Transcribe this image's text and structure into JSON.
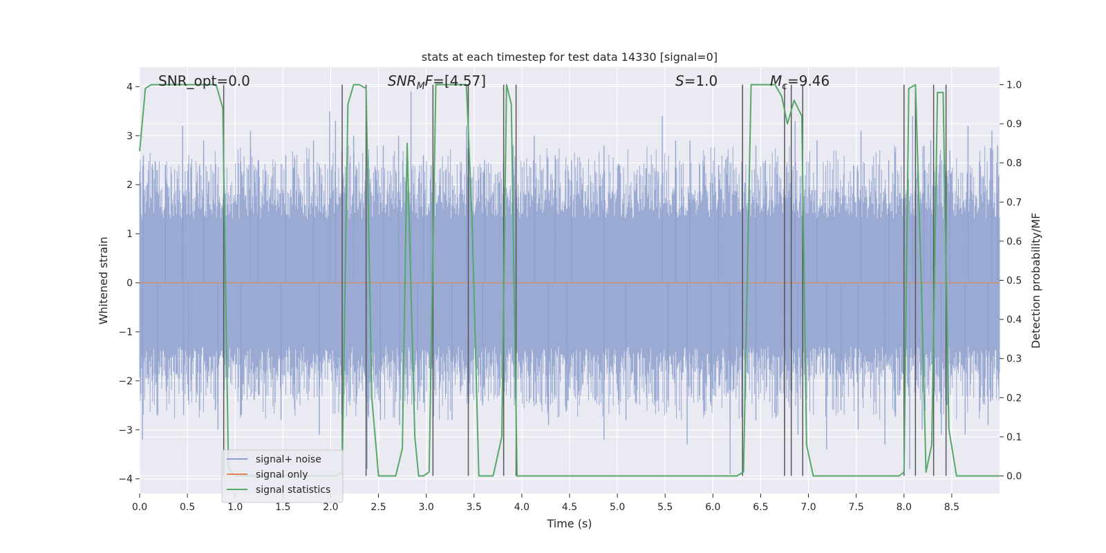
{
  "chart_data": {
    "type": "line",
    "title": "stats at each timestep for test data 14330 [signal=0]",
    "xlabel": "Time (s)",
    "ylabel": "Whitened strain",
    "y2label": "Detection probability/MF",
    "xlim": [
      0.0,
      9.0
    ],
    "ylim": [
      -4.3,
      4.4
    ],
    "y2lim": [
      -0.045,
      1.045
    ],
    "xticks": [
      0.0,
      0.5,
      1.0,
      1.5,
      2.0,
      2.5,
      3.0,
      3.5,
      4.0,
      4.5,
      5.0,
      5.5,
      6.0,
      6.5,
      7.0,
      7.5,
      8.0,
      8.5
    ],
    "xtick_labels": [
      "0.0",
      "0.5",
      "1.0",
      "1.5",
      "2.0",
      "2.5",
      "3.0",
      "3.5",
      "4.0",
      "4.5",
      "5.0",
      "5.5",
      "6.0",
      "6.5",
      "7.0",
      "7.5",
      "8.0",
      "8.5"
    ],
    "yticks": [
      -4,
      -3,
      -2,
      -1,
      0,
      1,
      2,
      3,
      4
    ],
    "ytick_labels": [
      "−4",
      "−3",
      "−2",
      "−1",
      "0",
      "1",
      "2",
      "3",
      "4"
    ],
    "y2ticks": [
      0.0,
      0.1,
      0.2,
      0.3,
      0.4,
      0.5,
      0.6,
      0.7,
      0.8,
      0.9,
      1.0
    ],
    "y2tick_labels": [
      "0.0",
      "0.1",
      "0.2",
      "0.3",
      "0.4",
      "0.5",
      "0.6",
      "0.7",
      "0.8",
      "0.9",
      "1.0"
    ],
    "grid": true,
    "legend_position": "bottom-left",
    "annotations": [
      "SNR_opt=0.0",
      "[4.57]",
      "=1.0",
      "=9.46"
    ],
    "annotation_parts": {
      "snr_mf_base": "SNR",
      "snr_mf_sub": "M",
      "snr_mf_tail": "F=",
      "s_symbol": "S",
      "mc_base": "M",
      "mc_sub": "c"
    },
    "series": [
      {
        "name": "signal+ noise",
        "color": "#8c9fcc",
        "description_values": "whitened strain noise, roughly within ±2.5 with spikes to ±3.9",
        "spikes_pos": [
          [
            0.04,
            2.6
          ],
          [
            0.27,
            2.4
          ],
          [
            0.45,
            3.2
          ],
          [
            0.67,
            2.9
          ],
          [
            1.16,
            3.1
          ],
          [
            1.24,
            2.5
          ],
          [
            1.53,
            2.6
          ],
          [
            1.82,
            2.9
          ],
          [
            1.99,
            3.5
          ],
          [
            2.05,
            3.3
          ],
          [
            2.24,
            3.0
          ],
          [
            2.55,
            2.8
          ],
          [
            2.71,
            3.0
          ],
          [
            2.84,
            3.9
          ],
          [
            2.97,
            2.6
          ],
          [
            3.05,
            2.4
          ],
          [
            3.42,
            3.2
          ],
          [
            3.61,
            2.5
          ],
          [
            3.91,
            2.8
          ],
          [
            4.13,
            3.0
          ],
          [
            4.35,
            2.6
          ],
          [
            4.52,
            2.5
          ],
          [
            4.86,
            2.8
          ],
          [
            5.47,
            3.4
          ],
          [
            5.61,
            2.9
          ],
          [
            5.76,
            2.9
          ],
          [
            6.06,
            2.4
          ],
          [
            6.45,
            2.8
          ],
          [
            6.55,
            2.5
          ],
          [
            6.86,
            3.3
          ],
          [
            7.09,
            2.9
          ],
          [
            7.55,
            3.1
          ],
          [
            7.84,
            2.5
          ],
          [
            8.09,
            3.4
          ],
          [
            8.21,
            2.8
          ],
          [
            8.28,
            2.9
          ],
          [
            8.48,
            2.7
          ],
          [
            8.67,
            3.2
          ],
          [
            8.92,
            3.1
          ],
          [
            8.98,
            2.8
          ]
        ],
        "spikes_neg": [
          [
            0.03,
            -3.2
          ],
          [
            0.19,
            -2.7
          ],
          [
            0.46,
            -2.7
          ],
          [
            0.51,
            -2.4
          ],
          [
            0.82,
            -3.0
          ],
          [
            1.06,
            -2.7
          ],
          [
            1.48,
            -2.8
          ],
          [
            1.88,
            -3.1
          ],
          [
            2.38,
            -3.8
          ],
          [
            2.52,
            -2.8
          ],
          [
            2.72,
            -2.9
          ],
          [
            2.91,
            -2.6
          ],
          [
            3.27,
            -2.8
          ],
          [
            3.44,
            -2.4
          ],
          [
            3.59,
            -2.5
          ],
          [
            3.81,
            -3.6
          ],
          [
            4.28,
            -2.9
          ],
          [
            4.47,
            -2.6
          ],
          [
            4.86,
            -3.2
          ],
          [
            5.09,
            -2.8
          ],
          [
            5.53,
            -2.4
          ],
          [
            5.73,
            -3.3
          ],
          [
            5.98,
            -2.5
          ],
          [
            6.18,
            -3.9
          ],
          [
            6.45,
            -2.8
          ],
          [
            6.75,
            -3.1
          ],
          [
            6.89,
            -3.1
          ],
          [
            7.19,
            -3.4
          ],
          [
            7.34,
            -2.6
          ],
          [
            7.52,
            -3.0
          ],
          [
            7.8,
            -3.3
          ],
          [
            8.06,
            -3.8
          ],
          [
            8.19,
            -3.0
          ],
          [
            8.39,
            -3.1
          ],
          [
            8.64,
            -3.1
          ],
          [
            8.88,
            -2.9
          ]
        ]
      },
      {
        "name": "signal only",
        "color": "#dd8452",
        "x": [
          0.0,
          9.0
        ],
        "y": [
          0.0,
          0.0
        ]
      },
      {
        "name": "signal statistics",
        "color": "#55a868",
        "axis": "right",
        "x": [
          0.0,
          0.06,
          0.12,
          0.25,
          0.4,
          0.55,
          0.7,
          0.8,
          0.87,
          0.93,
          1.0,
          1.08,
          1.15,
          1.3,
          1.5,
          1.7,
          1.9,
          2.05,
          2.12,
          2.18,
          2.24,
          2.3,
          2.37,
          2.43,
          2.5,
          2.58,
          2.68,
          2.75,
          2.8,
          2.88,
          2.92,
          2.97,
          3.03,
          3.1,
          3.15,
          3.2,
          3.3,
          3.42,
          3.48,
          3.55,
          3.6,
          3.7,
          3.79,
          3.84,
          3.89,
          3.95,
          4.0,
          4.1,
          4.5,
          5.0,
          5.5,
          6.0,
          6.25,
          6.32,
          6.4,
          6.5,
          6.65,
          6.72,
          6.78,
          6.85,
          6.93,
          6.98,
          7.05,
          7.15,
          7.4,
          7.7,
          7.95,
          8.0,
          8.05,
          8.12,
          8.18,
          8.23,
          8.29,
          8.35,
          8.41,
          8.47,
          8.55,
          8.7,
          9.0
        ],
        "y": [
          0.83,
          0.99,
          1.0,
          1.0,
          1.0,
          1.0,
          1.0,
          1.0,
          0.94,
          0.02,
          0.0,
          0.0,
          0.0,
          0.0,
          0.0,
          0.0,
          0.0,
          0.0,
          0.01,
          0.95,
          1.0,
          1.0,
          0.99,
          0.2,
          0.0,
          0.0,
          0.0,
          0.07,
          0.85,
          0.1,
          0.0,
          0.0,
          0.01,
          1.0,
          1.0,
          1.0,
          1.0,
          1.0,
          0.65,
          0.0,
          0.0,
          0.0,
          0.1,
          1.0,
          0.95,
          0.0,
          0.0,
          0.0,
          0.0,
          0.0,
          0.0,
          0.0,
          0.0,
          0.01,
          1.0,
          1.0,
          1.0,
          0.97,
          0.9,
          0.96,
          0.92,
          0.08,
          0.0,
          0.0,
          0.0,
          0.0,
          0.0,
          0.01,
          0.99,
          1.0,
          0.5,
          0.01,
          0.08,
          0.98,
          0.98,
          0.12,
          0.0,
          0.0,
          0.0
        ]
      }
    ],
    "vlines": [
      0.88,
      2.12,
      2.37,
      3.07,
      3.44,
      3.81,
      3.94,
      6.31,
      6.75,
      6.82,
      6.94,
      8.0,
      8.12,
      8.31,
      8.44
    ]
  }
}
